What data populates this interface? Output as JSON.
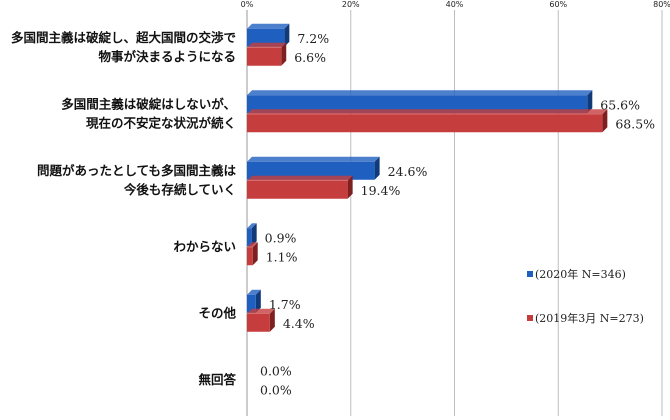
{
  "chart_data": {
    "type": "bar",
    "orientation": "horizontal",
    "categories": [
      [
        "多国間主義は破綻し、超大国間の交渉で",
        "物事が決まるようになる"
      ],
      [
        "多国間主義は破綻はしないが、",
        "現在の不安定な状況が続く"
      ],
      [
        "問題があったとしても多国間主義は",
        "今後も存続していく"
      ],
      [
        "わからない"
      ],
      [
        "その他"
      ],
      [
        "無回答"
      ]
    ],
    "series": [
      {
        "name": "(2020年 N=346)",
        "values": [
          7.2,
          65.6,
          24.6,
          0.9,
          1.7,
          0.0
        ],
        "labels": [
          "7.2%",
          "65.6%",
          "24.6%",
          "0.9%",
          "1.7%",
          "0.0%"
        ],
        "color": "#1f5fbf",
        "color_dark": "#113a7a"
      },
      {
        "name": "(2019年3月 N=273)",
        "values": [
          6.6,
          68.5,
          19.4,
          1.1,
          4.4,
          0.0
        ],
        "labels": [
          "6.6%",
          "68.5%",
          "19.4%",
          "1.1%",
          "4.4%",
          "0.0%"
        ],
        "color": "#c63d3d",
        "color_dark": "#7e2020"
      }
    ],
    "xlim": [
      0,
      80
    ],
    "x_ticks": [
      0,
      20,
      40,
      60,
      80
    ],
    "x_tick_labels": [
      "0%",
      "20%",
      "40%",
      "60%",
      "80%"
    ],
    "grid": "vertical",
    "legend": "right"
  }
}
